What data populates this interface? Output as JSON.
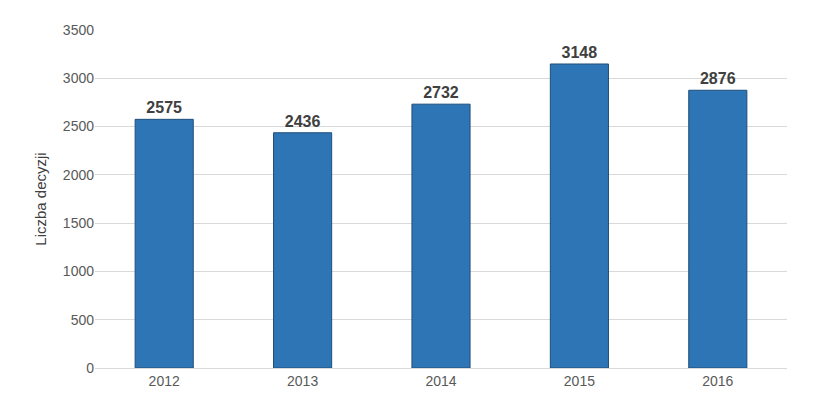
{
  "chart_data": {
    "type": "bar",
    "y_label": "Liczba decyzji",
    "categories": [
      "2012",
      "2013",
      "2014",
      "2015",
      "2016"
    ],
    "values": [
      2575,
      2436,
      2732,
      3148,
      2876
    ],
    "color": "#2e75b6",
    "ylim": [
      0,
      3500
    ],
    "yticks": [
      0,
      500,
      1000,
      1500,
      2000,
      2500,
      3000,
      3500
    ],
    "grid": true,
    "data_labels": true
  }
}
